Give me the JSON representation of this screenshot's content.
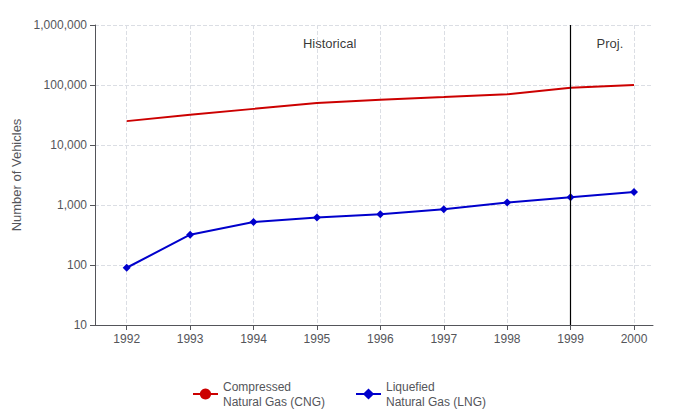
{
  "chart_data": {
    "type": "line",
    "y_label": "Number of Vehicles",
    "log": "y",
    "grid": true,
    "legend": "bottom",
    "xlim": [
      1991.5,
      2000.3
    ],
    "xticks": [
      1992,
      1993,
      1994,
      1995,
      1996,
      1997,
      1998,
      1999,
      2000
    ],
    "ylim": [
      10,
      1000000
    ],
    "yticks": [
      10,
      100,
      {
        "value": 1000,
        "label": "1,000"
      },
      {
        "value": 10000,
        "label": "10,000"
      },
      {
        "value": 100000,
        "label": "100,000"
      },
      {
        "value": 1000000,
        "label": "1,000,000"
      }
    ],
    "x": [
      1992,
      1993,
      1994,
      1995,
      1996,
      1997,
      1998,
      1999,
      2000
    ],
    "series": [
      {
        "name": "Compressed\nNatural Gas (CNG)",
        "color": "#cc0000",
        "marker": "none",
        "line_style": "solid",
        "values": [
          25000,
          32000,
          40000,
          50000,
          57000,
          63000,
          70000,
          90000,
          100000
        ]
      },
      {
        "name": "Liquefied\nNatural Gas (LNG)",
        "color": "#0000cc",
        "marker": "diamond",
        "line_style": "solid",
        "values": [
          90,
          320,
          520,
          620,
          700,
          850,
          1100,
          1350,
          1650
        ]
      }
    ],
    "vlines": [
      1999
    ],
    "annotations": [
      {
        "text": "Historical",
        "x": 1995.2,
        "y": 500000
      },
      {
        "text": "Proj.",
        "x": 1999.62,
        "y": 500000
      }
    ]
  }
}
